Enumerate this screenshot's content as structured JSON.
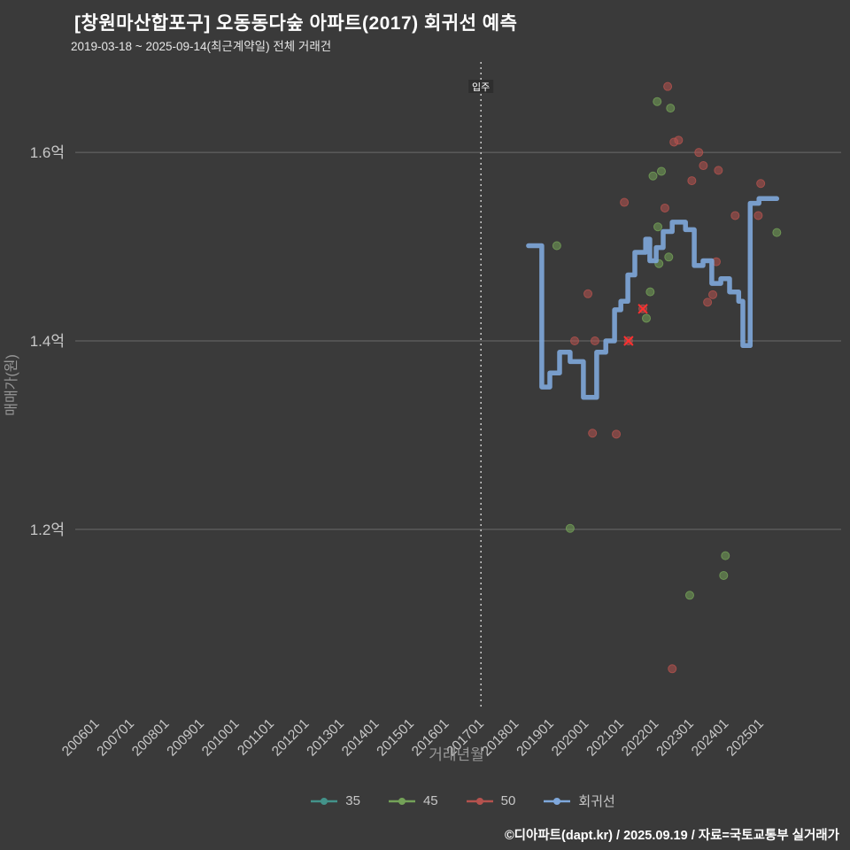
{
  "header": {
    "title": "[창원마산합포구] 오동동다숲 아파트(2017) 회귀선 예측",
    "subtitle": "2019-03-18 ~ 2025-09-14(최근계약일) 전체 거래건"
  },
  "footer": {
    "credit": "©디아파트(dapt.kr) / 2025.09.19 / 자료=국토교통부 실거래가"
  },
  "colors": {
    "background": "#3a3a3a",
    "grid": "#8c8c8c",
    "tick_label": "#c8c8c8",
    "axis_title": "#979797",
    "vline": "#e0e0e0",
    "series_35": "#43938a",
    "series_45": "#74a258",
    "series_50": "#b5524e",
    "regression": "#7fa8dc",
    "x_marker": "#ff2f2f"
  },
  "chart_data": {
    "type": "scatter",
    "title": "[창원마산합포구] 오동동다숲 아파트(2017) 회귀선 예측",
    "subtitle": "2019-03-18 ~ 2025-09-14(최근계약일) 전체 거래건",
    "xlabel": "거래년월",
    "ylabel": "매매가(원)",
    "y_unit": "억원",
    "x_domain": [
      2005.4,
      2027.3
    ],
    "y_domain": [
      1.01,
      1.696
    ],
    "grid": "horizontal",
    "legend_position": "bottom",
    "vline": {
      "x": 2017.0,
      "label": "입주"
    },
    "y_ticks": [
      {
        "value": 1.6,
        "label": "1.6억"
      },
      {
        "value": 1.4,
        "label": "1.4억"
      },
      {
        "value": 1.2,
        "label": "1.2억"
      }
    ],
    "x_ticks": [
      {
        "value": 2006,
        "label": "200601"
      },
      {
        "value": 2007,
        "label": "200701"
      },
      {
        "value": 2008,
        "label": "200801"
      },
      {
        "value": 2009,
        "label": "200901"
      },
      {
        "value": 2010,
        "label": "201001"
      },
      {
        "value": 2011,
        "label": "201101"
      },
      {
        "value": 2012,
        "label": "201201"
      },
      {
        "value": 2013,
        "label": "201301"
      },
      {
        "value": 2014,
        "label": "201401"
      },
      {
        "value": 2015,
        "label": "201501"
      },
      {
        "value": 2016,
        "label": "201601"
      },
      {
        "value": 2017,
        "label": "201701"
      },
      {
        "value": 2018,
        "label": "201801"
      },
      {
        "value": 2019,
        "label": "201901"
      },
      {
        "value": 2020,
        "label": "202001"
      },
      {
        "value": 2021,
        "label": "202101"
      },
      {
        "value": 2022,
        "label": "202201"
      },
      {
        "value": 2023,
        "label": "202301"
      },
      {
        "value": 2024,
        "label": "202401"
      },
      {
        "value": 2025,
        "label": "202501"
      }
    ],
    "series": [
      {
        "name": "35",
        "type": "scatter",
        "color": "#43938a",
        "points": []
      },
      {
        "name": "45",
        "type": "scatter",
        "color": "#74a258",
        "points": [
          [
            2022.04,
            1.654
          ],
          [
            2022.42,
            1.647
          ],
          [
            2022.16,
            1.58
          ],
          [
            2021.92,
            1.575
          ],
          [
            2019.17,
            1.501
          ],
          [
            2025.46,
            1.515
          ],
          [
            2022.06,
            1.521
          ],
          [
            2022.37,
            1.489
          ],
          [
            2022.09,
            1.482
          ],
          [
            2021.84,
            1.452
          ],
          [
            2021.73,
            1.424
          ],
          [
            2019.55,
            1.201
          ],
          [
            2023.99,
            1.172
          ],
          [
            2023.94,
            1.151
          ],
          [
            2022.97,
            1.13
          ]
        ]
      },
      {
        "name": "50",
        "type": "scatter",
        "color": "#b5524e",
        "points": [
          [
            2022.34,
            1.67
          ],
          [
            2022.52,
            1.611
          ],
          [
            2022.65,
            1.613
          ],
          [
            2023.23,
            1.6
          ],
          [
            2023.36,
            1.586
          ],
          [
            2023.79,
            1.581
          ],
          [
            2023.03,
            1.57
          ],
          [
            2025.0,
            1.567
          ],
          [
            2021.1,
            1.547
          ],
          [
            2022.26,
            1.541
          ],
          [
            2024.27,
            1.533
          ],
          [
            2024.93,
            1.533
          ],
          [
            2023.73,
            1.484
          ],
          [
            2023.63,
            1.449
          ],
          [
            2023.48,
            1.441
          ],
          [
            2020.06,
            1.45
          ],
          [
            2019.68,
            1.4
          ],
          [
            2020.26,
            1.4
          ],
          [
            2021.22,
            1.4
          ],
          [
            2021.63,
            1.434
          ],
          [
            2020.19,
            1.302
          ],
          [
            2020.87,
            1.301
          ],
          [
            2022.47,
            1.052
          ]
        ]
      },
      {
        "name": "회귀선",
        "type": "line",
        "color": "#7fa8dc",
        "points": [
          [
            2018.36,
            1.501
          ],
          [
            2018.74,
            1.501
          ],
          [
            2018.74,
            1.351
          ],
          [
            2018.97,
            1.351
          ],
          [
            2018.97,
            1.366
          ],
          [
            2019.25,
            1.366
          ],
          [
            2019.25,
            1.388
          ],
          [
            2019.55,
            1.388
          ],
          [
            2019.55,
            1.378
          ],
          [
            2019.93,
            1.378
          ],
          [
            2019.93,
            1.34
          ],
          [
            2020.31,
            1.34
          ],
          [
            2020.31,
            1.388
          ],
          [
            2020.57,
            1.388
          ],
          [
            2020.57,
            1.4
          ],
          [
            2020.82,
            1.4
          ],
          [
            2020.82,
            1.433
          ],
          [
            2021.0,
            1.433
          ],
          [
            2021.0,
            1.442
          ],
          [
            2021.2,
            1.442
          ],
          [
            2021.2,
            1.47
          ],
          [
            2021.4,
            1.47
          ],
          [
            2021.4,
            1.494
          ],
          [
            2021.71,
            1.494
          ],
          [
            2021.71,
            1.508
          ],
          [
            2021.83,
            1.508
          ],
          [
            2021.83,
            1.485
          ],
          [
            2022.01,
            1.485
          ],
          [
            2022.01,
            1.499
          ],
          [
            2022.21,
            1.499
          ],
          [
            2022.21,
            1.516
          ],
          [
            2022.47,
            1.516
          ],
          [
            2022.47,
            1.526
          ],
          [
            2022.85,
            1.526
          ],
          [
            2022.85,
            1.518
          ],
          [
            2023.1,
            1.518
          ],
          [
            2023.1,
            1.48
          ],
          [
            2023.35,
            1.48
          ],
          [
            2023.35,
            1.485
          ],
          [
            2023.6,
            1.485
          ],
          [
            2023.6,
            1.461
          ],
          [
            2023.86,
            1.461
          ],
          [
            2023.86,
            1.466
          ],
          [
            2024.11,
            1.466
          ],
          [
            2024.11,
            1.452
          ],
          [
            2024.37,
            1.452
          ],
          [
            2024.37,
            1.442
          ],
          [
            2024.49,
            1.442
          ],
          [
            2024.49,
            1.395
          ],
          [
            2024.7,
            1.395
          ],
          [
            2024.7,
            1.546
          ],
          [
            2024.95,
            1.546
          ],
          [
            2024.95,
            1.551
          ],
          [
            2025.46,
            1.551
          ]
        ]
      }
    ],
    "outlier_markers": {
      "symbol": "x",
      "color": "#ff2f2f",
      "points": [
        [
          2021.63,
          1.434
        ],
        [
          2021.22,
          1.4
        ]
      ]
    },
    "legend": [
      "35",
      "45",
      "50",
      "회귀선"
    ]
  }
}
